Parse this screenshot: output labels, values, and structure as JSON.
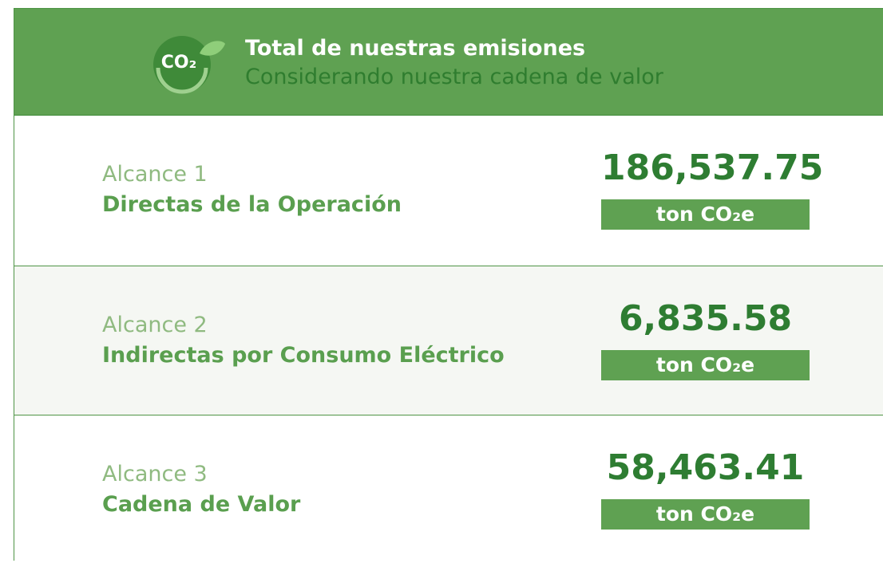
{
  "header": {
    "icon_text": "CO₂",
    "title": "Total de nuestras emisiones",
    "subtitle": "Considerando nuestra cadena de valor"
  },
  "rows": [
    {
      "scope": "Alcance 1",
      "name": "Directas de la Operación",
      "value": "186,537.75",
      "unit": "ton CO₂e"
    },
    {
      "scope": "Alcance 2",
      "name": "Indirectas por Consumo Eléctrico",
      "value": "6,835.58",
      "unit": "ton CO₂e"
    },
    {
      "scope": "Alcance 3",
      "name": "Cadena de Valor",
      "value": "58,463.41",
      "unit": "ton CO₂e"
    }
  ]
}
